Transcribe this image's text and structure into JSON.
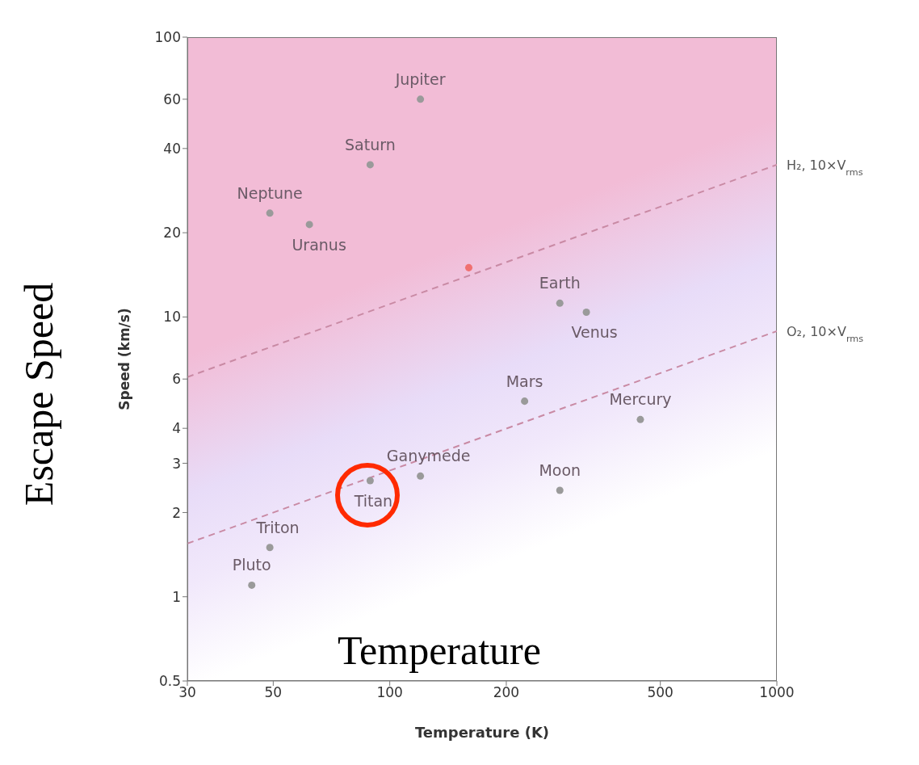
{
  "chart_data": {
    "type": "scatter",
    "xlabel": "Temperature (K)",
    "ylabel": "Speed (km/s)",
    "log": "xy",
    "xlim": [
      30,
      1000
    ],
    "ylim": [
      0.5,
      100
    ],
    "xticks": [
      30,
      50,
      100,
      200,
      500,
      1000
    ],
    "yticks": [
      0.5,
      1,
      2,
      3,
      4,
      6,
      10,
      20,
      40,
      60,
      100
    ],
    "marker": "circle",
    "series": [
      {
        "color": "#9a9a9a",
        "x": [
          120,
          89,
          49,
          62,
          275,
          322,
          223,
          444,
          275,
          120,
          89,
          49,
          44
        ],
        "values": [
          60,
          35,
          23.5,
          21.4,
          11.2,
          10.4,
          5.0,
          4.3,
          2.4,
          2.7,
          2.6,
          1.5,
          1.1
        ]
      },
      {
        "color": "#f07070",
        "x": [
          160
        ],
        "values": [
          15
        ]
      },
      {
        "type": "line",
        "name": "H₂, 10×V$_{rms}$",
        "color": "#c98aa4",
        "line_style": "dashed",
        "marker": "none",
        "x": [
          30,
          1000
        ],
        "values": [
          6.1,
          35
        ]
      },
      {
        "type": "line",
        "name": "O₂, 10×V$_{rms}$",
        "color": "#c98aa4",
        "line_style": "dashed",
        "marker": "none",
        "x": [
          30,
          1000
        ],
        "values": [
          1.55,
          8.9
        ]
      }
    ],
    "annotations": [
      {
        "text": "Jupiter",
        "x": 120,
        "y": 60
      },
      {
        "text": "Saturn",
        "x": 89,
        "y": 35
      },
      {
        "text": "Neptune",
        "x": 49,
        "y": 23.5
      },
      {
        "text": "Uranus",
        "x": 62,
        "y": 21.4
      },
      {
        "text": "Earth",
        "x": 275,
        "y": 11.2
      },
      {
        "text": "Venus",
        "x": 322,
        "y": 10.4
      },
      {
        "text": "Mars",
        "x": 223,
        "y": 5.0
      },
      {
        "text": "Mercury",
        "x": 444,
        "y": 4.3
      },
      {
        "text": "Moon",
        "x": 275,
        "y": 2.4
      },
      {
        "text": "Ganymede",
        "x": 120,
        "y": 2.7
      },
      {
        "text": "Titan",
        "x": 89,
        "y": 2.6
      },
      {
        "text": "Triton",
        "x": 49,
        "y": 1.5
      },
      {
        "text": "Pluto",
        "x": 44,
        "y": 1.1
      },
      "Escape Speed",
      "Temperature"
    ]
  }
}
